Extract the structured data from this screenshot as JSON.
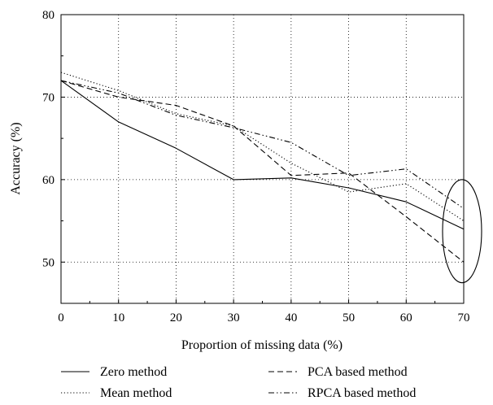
{
  "chart_data": {
    "type": "line",
    "title": "",
    "xlabel": "Proportion of missing data (%)",
    "ylabel": "Accuracy (%)",
    "x": [
      0,
      10,
      20,
      30,
      40,
      50,
      60,
      70
    ],
    "xlim": [
      0,
      70
    ],
    "ylim": [
      45,
      80
    ],
    "x_ticks": [
      0,
      10,
      20,
      30,
      40,
      50,
      60,
      70
    ],
    "y_ticks": [
      50,
      60,
      70,
      80
    ],
    "grid": true,
    "legend_position": "bottom",
    "series": [
      {
        "name": "Zero method",
        "style": "solid",
        "values": [
          72,
          67,
          63.8,
          60,
          60.2,
          59,
          57.3,
          54
        ]
      },
      {
        "name": "Mean method",
        "style": "dotted",
        "values": [
          73,
          70.8,
          68,
          66.5,
          62,
          58.5,
          59.5,
          55
        ]
      },
      {
        "name": "PCA based method",
        "style": "dashed",
        "values": [
          72,
          70,
          69,
          66.5,
          60.5,
          60.8,
          55.5,
          50
        ]
      },
      {
        "name": "RPCA based method",
        "style": "dashdotdot",
        "values": [
          72,
          70.5,
          67.8,
          66.3,
          64.5,
          60.5,
          61.3,
          56.5
        ]
      }
    ],
    "annotations": [
      {
        "type": "ellipse",
        "around": {
          "x": 70,
          "y_range": [
            47.5,
            60
          ]
        }
      }
    ]
  }
}
